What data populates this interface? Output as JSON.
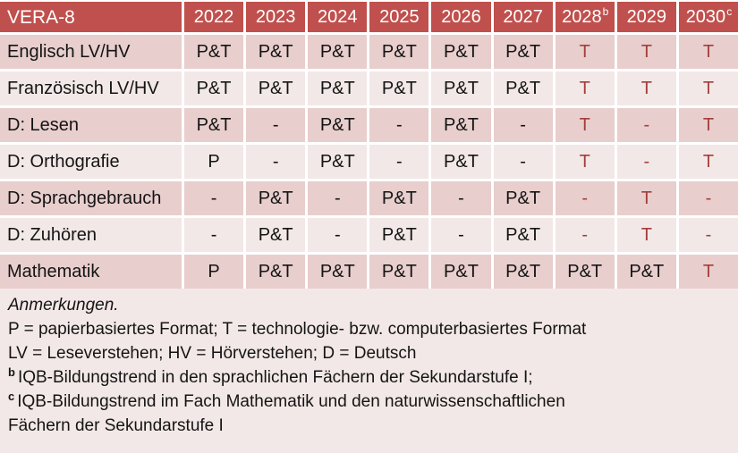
{
  "colors": {
    "header_bg": "#C0504D",
    "header_text": "#FFFFFF",
    "band_dark": "#E8CECD",
    "band_light": "#F2E8E7",
    "grid_line": "#FFFFFF",
    "body_text": "#141414",
    "accent_text": "#A43E3A",
    "notes_bg": "#F2E8E7"
  },
  "table": {
    "corner_label": "VERA-8",
    "year_headers": [
      {
        "text": "2022",
        "sup": ""
      },
      {
        "text": "2023",
        "sup": ""
      },
      {
        "text": "2024",
        "sup": ""
      },
      {
        "text": "2025",
        "sup": ""
      },
      {
        "text": "2026",
        "sup": ""
      },
      {
        "text": "2027",
        "sup": ""
      },
      {
        "text": "2028",
        "sup": "b"
      },
      {
        "text": "2029",
        "sup": ""
      },
      {
        "text": "2030",
        "sup": "c"
      }
    ],
    "rows": [
      {
        "label": "Englisch LV/HV",
        "cells": [
          {
            "text": "P&T",
            "red": false
          },
          {
            "text": "P&T",
            "red": false
          },
          {
            "text": "P&T",
            "red": false
          },
          {
            "text": "P&T",
            "red": false
          },
          {
            "text": "P&T",
            "red": false
          },
          {
            "text": "P&T",
            "red": false
          },
          {
            "text": "T",
            "red": true
          },
          {
            "text": "T",
            "red": true
          },
          {
            "text": "T",
            "red": true
          }
        ]
      },
      {
        "label": "Französisch LV/HV",
        "cells": [
          {
            "text": "P&T",
            "red": false
          },
          {
            "text": "P&T",
            "red": false
          },
          {
            "text": "P&T",
            "red": false
          },
          {
            "text": "P&T",
            "red": false
          },
          {
            "text": "P&T",
            "red": false
          },
          {
            "text": "P&T",
            "red": false
          },
          {
            "text": "T",
            "red": true
          },
          {
            "text": "T",
            "red": true
          },
          {
            "text": "T",
            "red": true
          }
        ]
      },
      {
        "label": "D: Lesen",
        "cells": [
          {
            "text": "P&T",
            "red": false
          },
          {
            "text": "-",
            "red": false
          },
          {
            "text": "P&T",
            "red": false
          },
          {
            "text": "-",
            "red": false
          },
          {
            "text": "P&T",
            "red": false
          },
          {
            "text": "-",
            "red": false
          },
          {
            "text": "T",
            "red": true
          },
          {
            "text": "-",
            "red": true
          },
          {
            "text": "T",
            "red": true
          }
        ]
      },
      {
        "label": "D: Orthografie",
        "cells": [
          {
            "text": "P",
            "red": false
          },
          {
            "text": "-",
            "red": false
          },
          {
            "text": "P&T",
            "red": false
          },
          {
            "text": "-",
            "red": false
          },
          {
            "text": "P&T",
            "red": false
          },
          {
            "text": "-",
            "red": false
          },
          {
            "text": "T",
            "red": true
          },
          {
            "text": "-",
            "red": true
          },
          {
            "text": "T",
            "red": true
          }
        ]
      },
      {
        "label": "D: Sprachgebrauch",
        "cells": [
          {
            "text": "-",
            "red": false
          },
          {
            "text": "P&T",
            "red": false
          },
          {
            "text": "-",
            "red": false
          },
          {
            "text": "P&T",
            "red": false
          },
          {
            "text": "-",
            "red": false
          },
          {
            "text": "P&T",
            "red": false
          },
          {
            "text": "-",
            "red": true
          },
          {
            "text": "T",
            "red": true
          },
          {
            "text": "-",
            "red": true
          }
        ]
      },
      {
        "label": "D: Zuhören",
        "cells": [
          {
            "text": "-",
            "red": false
          },
          {
            "text": "P&T",
            "red": false
          },
          {
            "text": "-",
            "red": false
          },
          {
            "text": "P&T",
            "red": false
          },
          {
            "text": "-",
            "red": false
          },
          {
            "text": "P&T",
            "red": false
          },
          {
            "text": "-",
            "red": true
          },
          {
            "text": "T",
            "red": true
          },
          {
            "text": "-",
            "red": true
          }
        ]
      },
      {
        "label": "Mathematik",
        "cells": [
          {
            "text": "P",
            "red": false
          },
          {
            "text": "P&T",
            "red": false
          },
          {
            "text": "P&T",
            "red": false
          },
          {
            "text": "P&T",
            "red": false
          },
          {
            "text": "P&T",
            "red": false
          },
          {
            "text": "P&T",
            "red": false
          },
          {
            "text": "P&T",
            "red": false
          },
          {
            "text": "P&T",
            "red": false
          },
          {
            "text": "T",
            "red": true
          }
        ]
      }
    ]
  },
  "notes": {
    "heading": "Anmerkungen.",
    "lines": [
      {
        "sup": "",
        "text": "P = papierbasiertes Format; T = technologie- bzw. computerbasiertes Format"
      },
      {
        "sup": "",
        "text": "LV = Leseverstehen; HV = Hörverstehen; D = Deutsch"
      },
      {
        "sup": "b",
        "text": "IQB-Bildungstrend in den sprachlichen Fächern der Sekundarstufe I;"
      },
      {
        "sup": "c",
        "text": "IQB-Bildungstrend im Fach Mathematik und den naturwissenschaftlichen"
      },
      {
        "sup": "",
        "text": "Fächern der Sekundarstufe I"
      }
    ]
  }
}
